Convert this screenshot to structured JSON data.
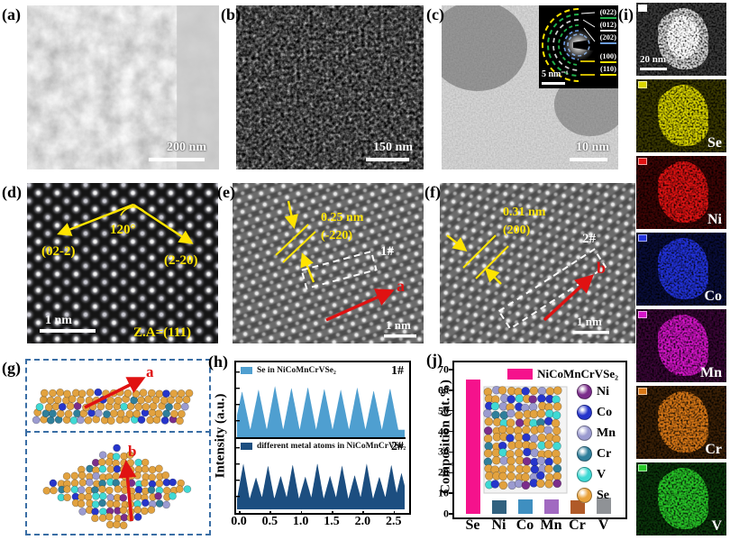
{
  "figure": {
    "panel_labels": {
      "a": "(a)",
      "b": "(b)",
      "c": "(c)",
      "d": "(d)",
      "e": "(e)",
      "f": "(f)",
      "g": "(g)",
      "h": "(h)",
      "i": "(i)",
      "j": "(j)"
    },
    "a": {
      "scalebar": "200 nm"
    },
    "b": {
      "scalebar": "150 nm"
    },
    "c": {
      "scalebar": "10 nm",
      "saed": {
        "scalebar": "5 nm⁻¹",
        "rings": [
          {
            "label": "(022)",
            "color": "#21b14b"
          },
          {
            "label": "(012)",
            "color": "#e8e8e8"
          },
          {
            "label": "(202)",
            "color": "#6e9fe8"
          },
          {
            "label": "(100)",
            "color": "#ffe400"
          },
          {
            "label": "(110)",
            "color": "#ffe400"
          }
        ]
      }
    },
    "d": {
      "plane_left": "(02-2)",
      "angle": "120°",
      "plane_right": "(2-20)",
      "scalebar": "1 nm",
      "zone_axis": "Z.A=(111)"
    },
    "e": {
      "spacing": "0.25 nm",
      "plane": "(-220)",
      "region_tag": "1#",
      "direction": "a",
      "scalebar": "1 nm"
    },
    "f": {
      "spacing": "0.31 nm",
      "plane": "(200)",
      "region_tag": "2#",
      "direction": "b",
      "scalebar": "1 nm"
    },
    "g": {
      "arrow_top": "a",
      "arrow_bottom": "b"
    },
    "i": {
      "maps": [
        {
          "name": "HAADF",
          "label": "",
          "scalebar": "20 nm",
          "color": "#d9d9d9",
          "swatch": "#ffffff"
        },
        {
          "name": "Se",
          "label": "Se",
          "scalebar": "",
          "color": "#d9d400",
          "swatch": "#d9d400"
        },
        {
          "name": "Ni",
          "label": "Ni",
          "scalebar": "",
          "color": "#e01212",
          "swatch": "#e01212"
        },
        {
          "name": "Co",
          "label": "Co",
          "scalebar": "",
          "color": "#2233dd",
          "swatch": "#2233dd"
        },
        {
          "name": "Mn",
          "label": "Mn",
          "scalebar": "",
          "color": "#d414c8",
          "swatch": "#d414c8"
        },
        {
          "name": "Cr",
          "label": "Cr",
          "scalebar": "",
          "color": "#d97817",
          "swatch": "#d97817"
        },
        {
          "name": "V",
          "label": "V",
          "scalebar": "",
          "color": "#28c828",
          "swatch": "#28c828"
        }
      ]
    }
  },
  "chart_data": [
    {
      "type": "area",
      "panel": "h",
      "title": "",
      "xlabel": "",
      "ylabel": "Intensity (a.u.)",
      "xlim": [
        0,
        2.65
      ],
      "xticks": [
        "0.0",
        "0.5",
        "1.0",
        "1.5",
        "2.0",
        "2.5"
      ],
      "grid": false,
      "legend_position": "inside-top-left",
      "series": [
        {
          "name": "Se in NiCoMnCrVSe₂",
          "tag": "1#",
          "color": "#4f9fd0",
          "peak_width": 0.13,
          "valley": 0.16,
          "peaks_x": [
            0.08,
            0.34,
            0.6,
            0.86,
            1.12,
            1.38,
            1.64,
            1.9,
            2.16,
            2.42
          ],
          "peaks_h": [
            0.88,
            0.92,
            1.0,
            0.96,
            0.98,
            0.94,
            0.92,
            0.97,
            0.9,
            0.95
          ]
        },
        {
          "name": "different metal atoms in NiCoMnCrVSe₂",
          "tag": "2#",
          "color": "#1c4e80",
          "peak_width": 0.1,
          "valley": 0.22,
          "peaks_x": [
            0.1,
            0.3,
            0.49,
            0.69,
            0.88,
            1.08,
            1.27,
            1.47,
            1.66,
            1.86,
            2.05,
            2.25,
            2.44,
            2.6
          ],
          "peaks_h": [
            0.95,
            0.58,
            0.9,
            0.62,
            0.93,
            0.6,
            0.96,
            0.62,
            0.9,
            0.64,
            0.95,
            0.6,
            0.92,
            0.7
          ]
        }
      ]
    },
    {
      "type": "bar",
      "panel": "j",
      "title": "",
      "xlabel": "",
      "ylabel": "Composition (at.%)",
      "categories": [
        "Se",
        "Ni",
        "Co",
        "Mn",
        "Cr",
        "V"
      ],
      "values": [
        65,
        6.5,
        7,
        7,
        6.5,
        8
      ],
      "bar_colors": [
        "#f5128c",
        "#31617f",
        "#3f8fc0",
        "#a169c1",
        "#b05a28",
        "#8f9296"
      ],
      "ylim": [
        0,
        70
      ],
      "yticks": [
        0,
        10,
        20,
        30,
        40,
        50,
        60,
        70
      ],
      "grid": false,
      "legend": {
        "label": "NiCoMnCrVSe₂",
        "color": "#f5128c"
      },
      "model_legend": [
        {
          "name": "Ni",
          "color": "#7b2d8b"
        },
        {
          "name": "Co",
          "color": "#2635cc"
        },
        {
          "name": "Mn",
          "color": "#9b9bd0"
        },
        {
          "name": "Cr",
          "color": "#2f7f9b"
        },
        {
          "name": "V",
          "color": "#3fd9d4"
        },
        {
          "name": "Se",
          "color": "#e9a23b"
        }
      ]
    }
  ]
}
